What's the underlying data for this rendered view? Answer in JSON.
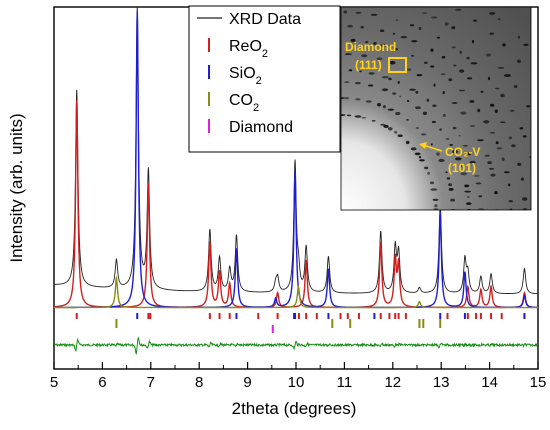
{
  "chart_data": {
    "type": "line",
    "xlabel": "2theta (degrees)",
    "ylabel": "Intensity (arb. units)",
    "xlim": [
      5,
      15
    ],
    "x_ticks": [
      "5",
      "6",
      "7",
      "8",
      "9",
      "10",
      "11",
      "12",
      "13",
      "14",
      "15"
    ],
    "legend": {
      "placement": "top-center",
      "entries": [
        {
          "key": "xrd",
          "label": "XRD Data",
          "sub": "",
          "color": "#222222",
          "marker": "line"
        },
        {
          "key": "reo2",
          "label": "ReO",
          "sub": "2",
          "color": "#d11f1f",
          "marker": "tick"
        },
        {
          "key": "sio2",
          "label": "SiO",
          "sub": "2",
          "color": "#1f1fd1",
          "marker": "tick"
        },
        {
          "key": "co2",
          "label": "CO",
          "sub": "2",
          "color": "#8b8b14",
          "marker": "tick"
        },
        {
          "key": "diamond",
          "label": "Diamond",
          "sub": "",
          "color": "#e020e0",
          "marker": "tick"
        }
      ]
    },
    "baseline": 0.05,
    "series": [
      {
        "key": "reo2",
        "color": "#d11f1f",
        "peaks": [
          [
            5.47,
            0.7
          ],
          [
            6.95,
            0.42
          ],
          [
            8.22,
            0.22
          ],
          [
            8.42,
            0.12
          ],
          [
            8.63,
            0.08
          ],
          [
            9.62,
            0.05
          ],
          [
            10.21,
            0.16
          ],
          [
            11.75,
            0.22
          ],
          [
            12.05,
            0.16
          ],
          [
            12.12,
            0.14
          ],
          [
            13.55,
            0.07
          ],
          [
            13.82,
            0.06
          ],
          [
            14.03,
            0.07
          ],
          [
            14.72,
            0.05
          ]
        ]
      },
      {
        "key": "sio2",
        "color": "#1f1fd1",
        "peaks": [
          [
            6.72,
            1.0
          ],
          [
            8.77,
            0.2
          ],
          [
            9.58,
            0.03
          ],
          [
            9.98,
            0.46
          ],
          [
            10.67,
            0.13
          ],
          [
            12.98,
            0.32
          ],
          [
            13.49,
            0.12
          ],
          [
            14.72,
            0.04
          ]
        ]
      },
      {
        "key": "co2",
        "color": "#8b8b14",
        "peaks": [
          [
            6.29,
            0.1
          ],
          [
            10.05,
            0.07
          ],
          [
            12.55,
            0.02
          ]
        ]
      },
      {
        "key": "xrd_extra",
        "color": "#222222",
        "peaks": []
      }
    ],
    "reference_ticks": {
      "reo2": [
        5.47,
        6.95,
        6.99,
        8.22,
        8.42,
        8.63,
        9.22,
        9.62,
        10.06,
        10.21,
        10.43,
        10.92,
        11.07,
        11.3,
        11.75,
        11.93,
        12.05,
        12.12,
        12.27,
        13.13,
        13.55,
        13.72,
        13.82,
        14.03,
        14.25,
        14.72
      ],
      "sio2": [
        6.72,
        8.77,
        9.96,
        9.98,
        10.67,
        11.62,
        12.98,
        13.49,
        14.72
      ],
      "co2": [
        6.29,
        10.75,
        11.12,
        12.55,
        12.63,
        12.98
      ],
      "diamond": [
        9.52
      ]
    },
    "inset": {
      "label_diamond": "Diamond",
      "label_diamond_hkl": "(111)",
      "label_co2": "CO₂-V",
      "label_co2_hkl": "(101)",
      "label_color": "#ffd21e"
    }
  }
}
